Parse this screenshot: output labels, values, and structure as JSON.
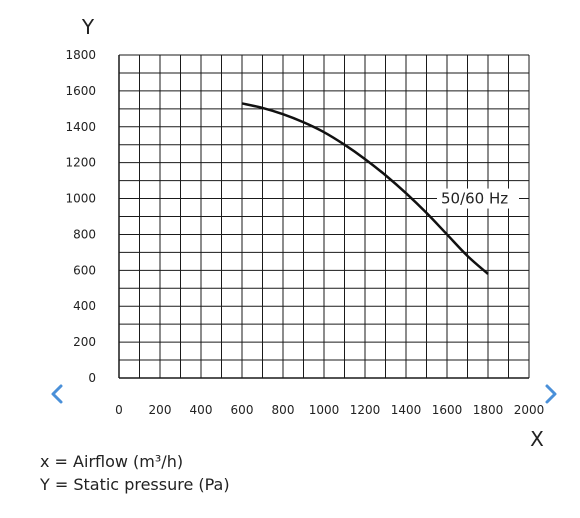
{
  "chart_data": {
    "type": "line",
    "xlabel": "X",
    "ylabel": "Y",
    "xlim": [
      0,
      2000
    ],
    "ylim": [
      0,
      1800
    ],
    "x_ticks": [
      "0",
      "200",
      "400",
      "600",
      "800",
      "1000",
      "1200",
      "1400",
      "1600",
      "1800",
      "2000"
    ],
    "y_ticks": [
      "0",
      "200",
      "400",
      "600",
      "800",
      "1000",
      "1200",
      "1400",
      "1600",
      "1800"
    ],
    "grid": true,
    "series": [
      {
        "name": "50/60 Hz",
        "x": [
          600,
          700,
          800,
          900,
          1000,
          1100,
          1200,
          1300,
          1400,
          1500,
          1600,
          1700,
          1800
        ],
        "y": [
          1530,
          1505,
          1470,
          1425,
          1370,
          1300,
          1220,
          1130,
          1030,
          920,
          800,
          680,
          580
        ]
      }
    ]
  },
  "legend": {
    "x_line": "x = Airflow (m³/h)",
    "y_line": "Y = Static pressure (Pa)"
  },
  "nav": {
    "prev_icon": "chevron-left-icon",
    "next_icon": "chevron-right-icon",
    "color": "#4a90d9"
  },
  "colors": {
    "grid": "#1a1a1a",
    "curve": "#111111"
  }
}
